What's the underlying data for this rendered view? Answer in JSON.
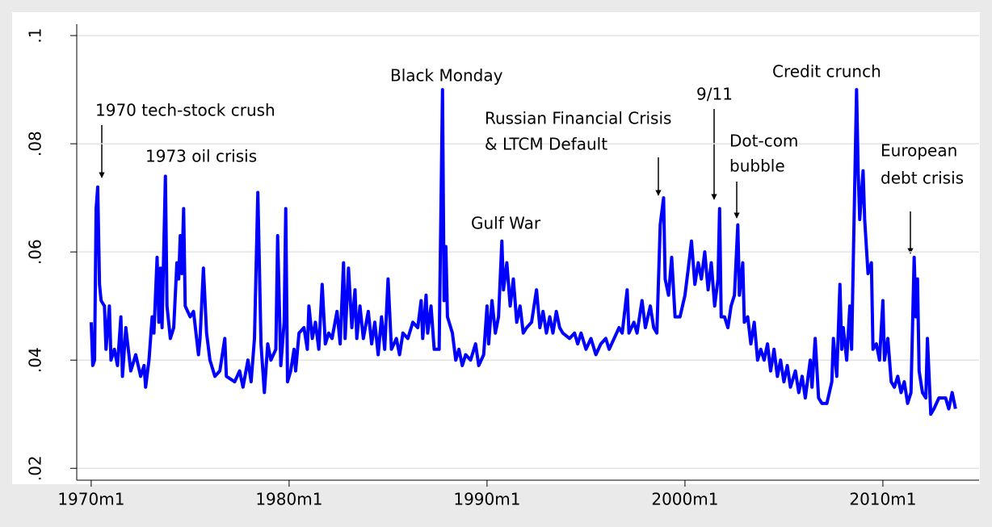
{
  "chart_data": {
    "type": "line",
    "series": [
      {
        "color": "#0000ff",
        "x": [
          1970.0,
          1970.08,
          1970.17,
          1970.25,
          1970.33,
          1970.42,
          1970.5,
          1970.67,
          1970.75,
          1970.92,
          1971.0,
          1971.17,
          1971.33,
          1971.5,
          1971.58,
          1971.75,
          1972.0,
          1972.25,
          1972.5,
          1972.67,
          1972.75,
          1972.92,
          1973.08,
          1973.17,
          1973.33,
          1973.42,
          1973.5,
          1973.58,
          1973.75,
          1973.83,
          1974.0,
          1974.17,
          1974.33,
          1974.42,
          1974.5,
          1974.58,
          1974.67,
          1974.75,
          1975.0,
          1975.17,
          1975.42,
          1975.5,
          1975.67,
          1975.83,
          1976.0,
          1976.25,
          1976.5,
          1976.75,
          1976.83,
          1977.25,
          1977.5,
          1977.67,
          1977.92,
          1978.08,
          1978.25,
          1978.42,
          1978.58,
          1978.75,
          1978.92,
          1979.08,
          1979.33,
          1979.42,
          1979.58,
          1979.75,
          1979.83,
          1979.92,
          1980.08,
          1980.25,
          1980.33,
          1980.5,
          1980.75,
          1980.92,
          1981.0,
          1981.17,
          1981.33,
          1981.5,
          1981.67,
          1981.83,
          1982.0,
          1982.17,
          1982.42,
          1982.58,
          1982.75,
          1982.83,
          1983.0,
          1983.17,
          1983.33,
          1983.42,
          1983.58,
          1983.75,
          1984.0,
          1984.17,
          1984.33,
          1984.5,
          1984.67,
          1984.83,
          1985.0,
          1985.17,
          1985.42,
          1985.58,
          1985.75,
          1986.0,
          1986.25,
          1986.5,
          1986.67,
          1986.75,
          1986.92,
          1987.0,
          1987.17,
          1987.33,
          1987.58,
          1987.75,
          1987.83,
          1987.92,
          1988.0,
          1988.25,
          1988.42,
          1988.58,
          1988.75,
          1988.92,
          1989.17,
          1989.42,
          1989.58,
          1989.83,
          1990.0,
          1990.08,
          1990.25,
          1990.42,
          1990.58,
          1990.75,
          1990.83,
          1991.0,
          1991.17,
          1991.33,
          1991.5,
          1991.67,
          1991.83,
          1992.0,
          1992.25,
          1992.5,
          1992.67,
          1992.83,
          1993.0,
          1993.17,
          1993.33,
          1993.5,
          1993.67,
          1993.83,
          1994.17,
          1994.42,
          1994.58,
          1994.75,
          1995.0,
          1995.25,
          1995.5,
          1995.75,
          1996.0,
          1996.17,
          1996.42,
          1996.67,
          1996.83,
          1997.08,
          1997.17,
          1997.42,
          1997.58,
          1997.83,
          1998.0,
          1998.25,
          1998.42,
          1998.58,
          1998.75,
          1998.92,
          1999.0,
          1999.17,
          1999.33,
          1999.5,
          1999.75,
          2000.0,
          2000.17,
          2000.33,
          2000.5,
          2000.67,
          2000.83,
          2001.0,
          2001.17,
          2001.33,
          2001.5,
          2001.67,
          2001.75,
          2001.83,
          2002.0,
          2002.17,
          2002.33,
          2002.5,
          2002.67,
          2002.75,
          2002.92,
          2003.0,
          2003.17,
          2003.33,
          2003.5,
          2003.67,
          2003.83,
          2004.0,
          2004.17,
          2004.33,
          2004.5,
          2004.67,
          2004.83,
          2005.0,
          2005.17,
          2005.33,
          2005.58,
          2005.75,
          2005.92,
          2006.08,
          2006.33,
          2006.42,
          2006.58,
          2006.75,
          2006.92,
          2007.17,
          2007.42,
          2007.5,
          2007.67,
          2007.83,
          2007.92,
          2008.0,
          2008.17,
          2008.33,
          2008.42,
          2008.67,
          2008.75,
          2008.83,
          2009.0,
          2009.08,
          2009.25,
          2009.42,
          2009.5,
          2009.67,
          2009.83,
          2010.0,
          2010.08,
          2010.25,
          2010.42,
          2010.58,
          2010.75,
          2010.92,
          2011.08,
          2011.25,
          2011.42,
          2011.58,
          2011.67,
          2011.75,
          2011.83,
          2012.0,
          2012.17,
          2012.25,
          2012.42,
          2012.58,
          2012.83,
          2013.17,
          2013.33,
          2013.5,
          2013.67
        ],
        "values": [
          0.047,
          0.039,
          0.04,
          0.068,
          0.072,
          0.054,
          0.051,
          0.05,
          0.042,
          0.05,
          0.04,
          0.042,
          0.039,
          0.048,
          0.037,
          0.046,
          0.038,
          0.041,
          0.037,
          0.039,
          0.035,
          0.04,
          0.048,
          0.045,
          0.059,
          0.047,
          0.057,
          0.046,
          0.074,
          0.05,
          0.044,
          0.046,
          0.058,
          0.055,
          0.063,
          0.056,
          0.068,
          0.05,
          0.048,
          0.049,
          0.041,
          0.044,
          0.057,
          0.045,
          0.04,
          0.037,
          0.038,
          0.044,
          0.037,
          0.036,
          0.038,
          0.035,
          0.04,
          0.036,
          0.044,
          0.071,
          0.043,
          0.034,
          0.043,
          0.04,
          0.042,
          0.063,
          0.039,
          0.047,
          0.068,
          0.036,
          0.038,
          0.042,
          0.038,
          0.045,
          0.046,
          0.042,
          0.05,
          0.044,
          0.047,
          0.042,
          0.054,
          0.043,
          0.045,
          0.044,
          0.049,
          0.043,
          0.058,
          0.044,
          0.057,
          0.046,
          0.053,
          0.044,
          0.05,
          0.044,
          0.049,
          0.043,
          0.047,
          0.041,
          0.048,
          0.042,
          0.055,
          0.042,
          0.044,
          0.041,
          0.045,
          0.044,
          0.047,
          0.046,
          0.051,
          0.044,
          0.052,
          0.045,
          0.05,
          0.042,
          0.042,
          0.09,
          0.051,
          0.061,
          0.048,
          0.045,
          0.04,
          0.042,
          0.039,
          0.041,
          0.04,
          0.043,
          0.039,
          0.041,
          0.05,
          0.043,
          0.051,
          0.045,
          0.048,
          0.062,
          0.053,
          0.058,
          0.05,
          0.055,
          0.047,
          0.05,
          0.045,
          0.046,
          0.047,
          0.053,
          0.046,
          0.049,
          0.045,
          0.048,
          0.045,
          0.049,
          0.046,
          0.045,
          0.044,
          0.045,
          0.043,
          0.045,
          0.042,
          0.044,
          0.041,
          0.043,
          0.044,
          0.042,
          0.044,
          0.046,
          0.045,
          0.053,
          0.045,
          0.047,
          0.045,
          0.051,
          0.046,
          0.05,
          0.046,
          0.045,
          0.065,
          0.07,
          0.055,
          0.052,
          0.059,
          0.048,
          0.048,
          0.052,
          0.057,
          0.062,
          0.054,
          0.058,
          0.055,
          0.06,
          0.053,
          0.058,
          0.05,
          0.055,
          0.068,
          0.048,
          0.048,
          0.046,
          0.05,
          0.052,
          0.065,
          0.052,
          0.058,
          0.047,
          0.048,
          0.043,
          0.047,
          0.04,
          0.042,
          0.04,
          0.043,
          0.038,
          0.042,
          0.037,
          0.04,
          0.036,
          0.039,
          0.035,
          0.038,
          0.034,
          0.037,
          0.033,
          0.04,
          0.035,
          0.044,
          0.033,
          0.032,
          0.032,
          0.036,
          0.044,
          0.037,
          0.054,
          0.042,
          0.046,
          0.04,
          0.05,
          0.042,
          0.09,
          0.075,
          0.066,
          0.075,
          0.066,
          0.056,
          0.058,
          0.042,
          0.043,
          0.04,
          0.051,
          0.04,
          0.044,
          0.036,
          0.035,
          0.037,
          0.034,
          0.036,
          0.032,
          0.034,
          0.059,
          0.048,
          0.055,
          0.038,
          0.034,
          0.033,
          0.044,
          0.03,
          0.031,
          0.033,
          0.033,
          0.031,
          0.034,
          0.031
        ]
      }
    ],
    "xlim": [
      1969.27,
      2014.86
    ],
    "xticks": [
      {
        "value": 1970,
        "label": "1970m1"
      },
      {
        "value": 1980,
        "label": "1980m1"
      },
      {
        "value": 1990,
        "label": "1990m1"
      },
      {
        "value": 2000,
        "label": "2000m1"
      },
      {
        "value": 2010,
        "label": "2010m1"
      }
    ],
    "ylim": [
      0.0178,
      0.1021
    ],
    "yticks": [
      {
        "value": 0.02,
        "label": ".02"
      },
      {
        "value": 0.04,
        "label": ".04"
      },
      {
        "value": 0.06,
        "label": ".06"
      },
      {
        "value": 0.08,
        "label": ".08"
      },
      {
        "value": 0.1,
        "label": ".1"
      }
    ],
    "grid": true,
    "annotations": [
      {
        "lines": [
          "1970 tech-stock crush"
        ]
      },
      {
        "lines": [
          "1973 oil crisis"
        ]
      },
      {
        "lines": [
          "Black Monday"
        ]
      },
      {
        "lines": [
          "Russian Financial Crisis",
          "& LTCM Default"
        ]
      },
      {
        "lines": [
          "Gulf War"
        ]
      },
      {
        "lines": [
          "9/11"
        ]
      },
      {
        "lines": [
          "Dot-com",
          "bubble"
        ]
      },
      {
        "lines": [
          "Credit crunch"
        ]
      },
      {
        "lines": [
          "European",
          "debt crisis"
        ]
      }
    ]
  }
}
